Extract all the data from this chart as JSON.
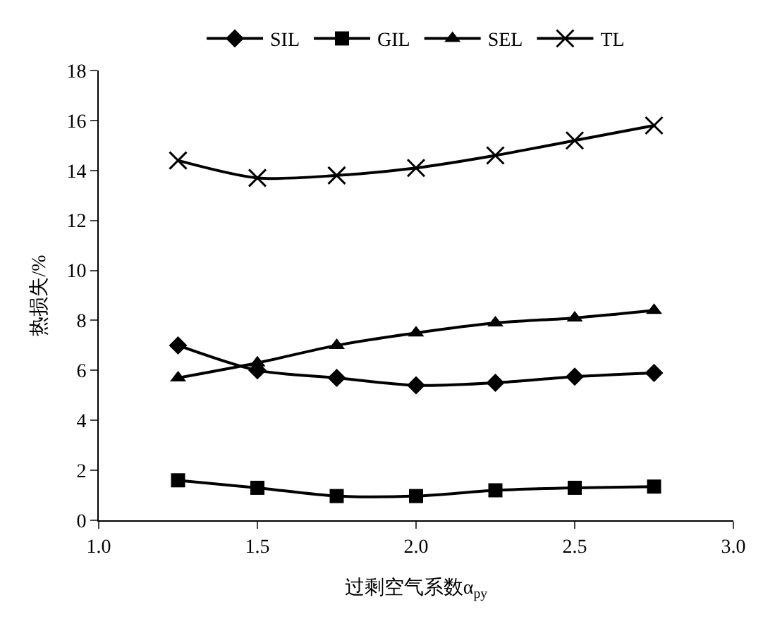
{
  "chart_data": {
    "type": "line",
    "xlabel": "过剩空气系数α$_{py}$",
    "ylabel": "热损失/%",
    "x": [
      1.25,
      1.5,
      1.75,
      2.0,
      2.25,
      2.5,
      2.75
    ],
    "series": [
      {
        "name": "SIL",
        "color": "#000000",
        "marker": "diamond",
        "values": [
          7.0,
          6.0,
          5.7,
          5.4,
          5.5,
          5.75,
          5.9
        ]
      },
      {
        "name": "GIL",
        "color": "#000000",
        "marker": "square",
        "values": [
          1.6,
          1.3,
          0.97,
          0.97,
          1.2,
          1.3,
          1.35
        ]
      },
      {
        "name": "SEL",
        "color": "#000000",
        "marker": "triangle",
        "values": [
          5.7,
          6.3,
          7.0,
          7.5,
          7.9,
          8.1,
          8.4
        ]
      },
      {
        "name": "TL",
        "color": "#000000",
        "marker": "cross",
        "values": [
          14.4,
          13.7,
          13.8,
          14.1,
          14.6,
          15.2,
          15.8
        ]
      }
    ],
    "xlim": [
      1.0,
      3.0
    ],
    "xticks": [
      {
        "value": 1.0,
        "label": "1.0"
      },
      {
        "value": 1.5,
        "label": "1.5"
      },
      {
        "value": 2.0,
        "label": "2.0"
      },
      {
        "value": 2.5,
        "label": "2.5"
      },
      {
        "value": 3.0,
        "label": "3.0"
      }
    ],
    "ylim": [
      0,
      18
    ],
    "yticks": [
      0,
      2,
      4,
      6,
      8,
      10,
      12,
      14,
      16,
      18
    ],
    "grid": false,
    "legend": "top",
    "line_style": "solid"
  }
}
